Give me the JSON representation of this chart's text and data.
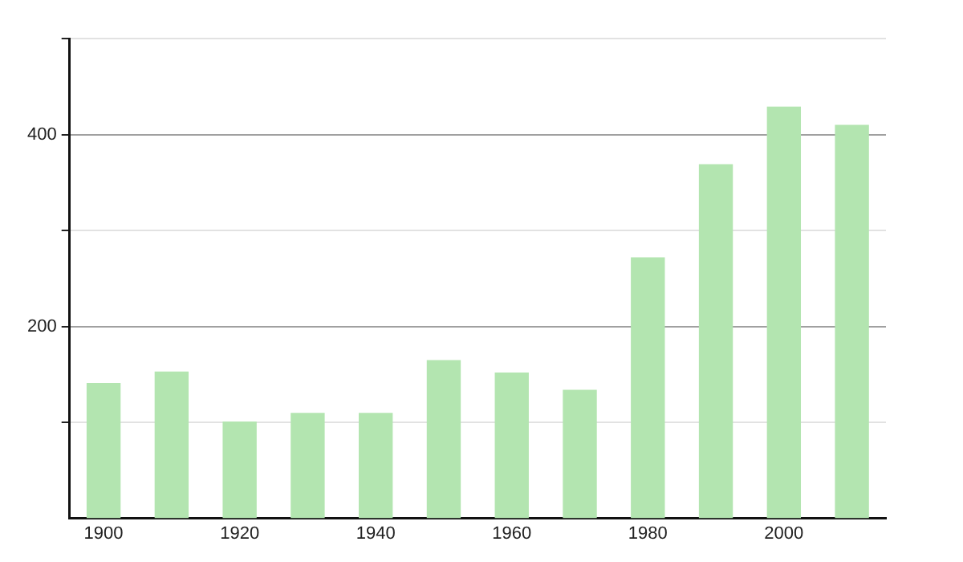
{
  "chart_data": {
    "type": "bar",
    "categories": [
      "1900",
      null,
      "1920",
      null,
      "1940",
      null,
      "1960",
      null,
      "1980",
      null,
      "2000",
      null
    ],
    "values": [
      141,
      153,
      101,
      110,
      110,
      165,
      152,
      134,
      272,
      369,
      429,
      410
    ],
    "color": "#b3e5b0",
    "ylim": [
      0,
      500
    ],
    "yticks": [
      {
        "value": 100,
        "label": null
      },
      200,
      {
        "value": 300,
        "label": null
      },
      400,
      {
        "value": 500,
        "label": null
      }
    ],
    "grid": "y"
  }
}
